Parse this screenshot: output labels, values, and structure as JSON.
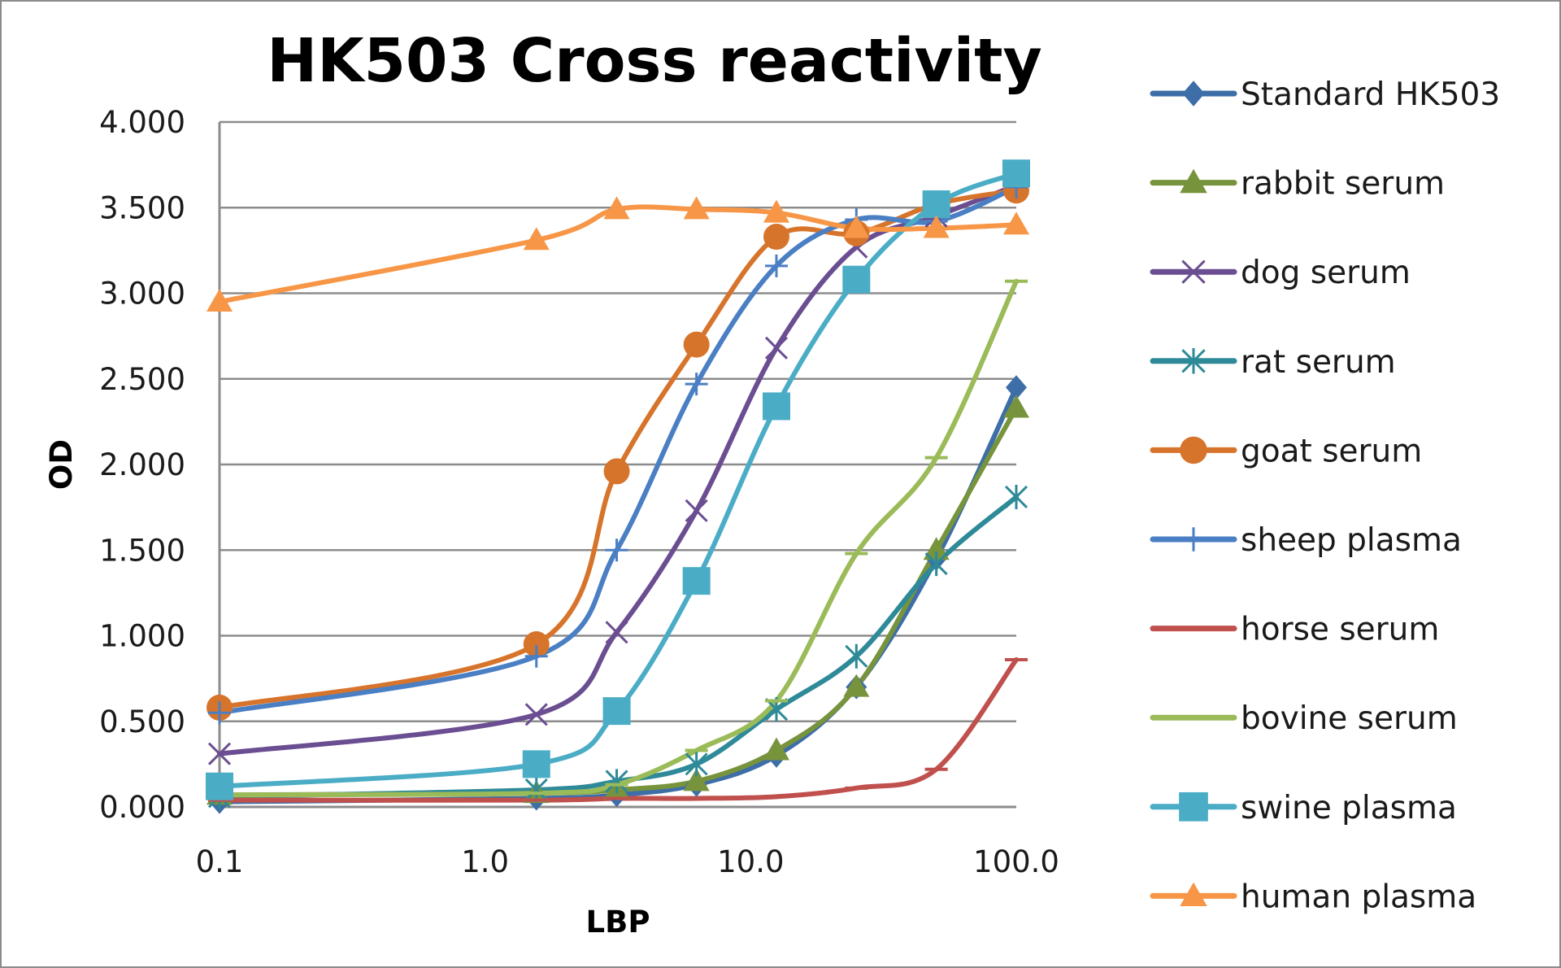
{
  "chart_data": {
    "type": "line",
    "title": "HK503 Cross reactivity",
    "xlabel": "LBP",
    "ylabel": "OD",
    "x_scale": "log",
    "xlim": [
      0.1,
      100
    ],
    "ylim": [
      0,
      4
    ],
    "x_ticks": [
      "0.1",
      "1.0",
      "10.0",
      "100.0"
    ],
    "y_ticks": [
      "0.000",
      "0.500",
      "1.000",
      "1.500",
      "2.000",
      "2.500",
      "3.000",
      "3.500",
      "4.000"
    ],
    "grid": "horizontal",
    "legend_position": "right",
    "x": [
      0.1,
      1.56,
      3.13,
      6.25,
      12.5,
      25,
      50,
      100
    ],
    "series": [
      {
        "name": "Standard HK503",
        "color": "#3d6ea8",
        "marker": "diamond",
        "values": [
          0.03,
          0.05,
          0.07,
          0.13,
          0.3,
          0.7,
          1.45,
          2.45
        ]
      },
      {
        "name": "rabbit serum",
        "color": "#77933c",
        "marker": "triangle",
        "values": [
          0.07,
          0.08,
          0.1,
          0.15,
          0.33,
          0.7,
          1.5,
          2.33
        ]
      },
      {
        "name": "dog serum",
        "color": "#6b4e91",
        "marker": "x",
        "values": [
          0.31,
          0.54,
          1.02,
          1.73,
          2.68,
          3.27,
          3.45,
          3.63
        ]
      },
      {
        "name": "rat serum",
        "color": "#2e8a98",
        "marker": "star",
        "values": [
          0.06,
          0.1,
          0.15,
          0.25,
          0.57,
          0.88,
          1.42,
          1.81
        ]
      },
      {
        "name": "goat serum",
        "color": "#d7742c",
        "marker": "circle",
        "values": [
          0.58,
          0.95,
          1.96,
          2.7,
          3.33,
          3.35,
          3.52,
          3.6
        ]
      },
      {
        "name": "sheep plasma",
        "color": "#4a7fc4",
        "marker": "plus",
        "values": [
          0.55,
          0.88,
          1.5,
          2.47,
          3.16,
          3.43,
          3.42,
          3.62
        ]
      },
      {
        "name": "horse serum",
        "color": "#c0504d",
        "marker": "dash",
        "values": [
          0.04,
          0.04,
          0.05,
          0.05,
          0.06,
          0.11,
          0.22,
          0.86
        ]
      },
      {
        "name": "bovine serum",
        "color": "#9bbb59",
        "marker": "dash",
        "values": [
          0.07,
          0.08,
          0.13,
          0.33,
          0.62,
          1.48,
          2.04,
          3.07
        ]
      },
      {
        "name": "swine plasma",
        "color": "#4bacc6",
        "marker": "square",
        "values": [
          0.12,
          0.25,
          0.56,
          1.32,
          2.34,
          3.08,
          3.52,
          3.7
        ]
      },
      {
        "name": "human plasma",
        "color": "#f79646",
        "marker": "triangle",
        "values": [
          2.95,
          3.31,
          3.49,
          3.49,
          3.47,
          3.38,
          3.38,
          3.4
        ]
      }
    ]
  }
}
